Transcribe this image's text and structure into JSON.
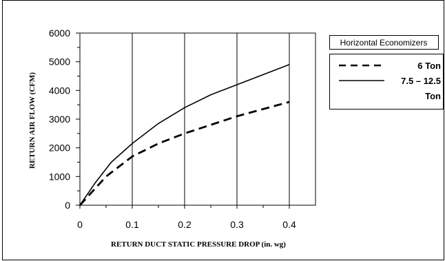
{
  "chart_data": {
    "type": "line",
    "xlabel": "RETURN DUCT STATIC PRESSURE DROP (in. wg)",
    "ylabel": "RETURN AIR FLOW (CFM)",
    "xlim": [
      0,
      0.45
    ],
    "ylim": [
      0,
      6000
    ],
    "x_ticks": [
      0,
      0.1,
      0.2,
      0.3,
      0.4
    ],
    "x_tick_labels": [
      "0",
      "0.1",
      "0.2",
      "0.3",
      "0.4"
    ],
    "y_ticks": [
      0,
      1000,
      2000,
      3000,
      4000,
      5000,
      6000
    ],
    "y_tick_labels": [
      "0",
      "1000",
      "2000",
      "3000",
      "4000",
      "5000",
      "6000"
    ],
    "grid": "vertical",
    "legend": {
      "title": "Horizontal Economizers",
      "position": "right",
      "entries": [
        {
          "line1": "6 Ton",
          "line2": ""
        },
        {
          "line1": "7.5 – 12.5",
          "line2": "Ton"
        }
      ]
    },
    "series": [
      {
        "name": "6 Ton",
        "style": "dashed",
        "points": [
          [
            0,
            0
          ],
          [
            0.05,
            1000
          ],
          [
            0.1,
            1700
          ],
          [
            0.15,
            2150
          ],
          [
            0.2,
            2500
          ],
          [
            0.25,
            2800
          ],
          [
            0.3,
            3100
          ],
          [
            0.35,
            3350
          ],
          [
            0.4,
            3600
          ]
        ]
      },
      {
        "name": "7.5 – 12.5 Ton",
        "style": "solid",
        "points": [
          [
            0,
            0
          ],
          [
            0.03,
            800
          ],
          [
            0.06,
            1500
          ],
          [
            0.1,
            2150
          ],
          [
            0.15,
            2850
          ],
          [
            0.2,
            3400
          ],
          [
            0.25,
            3850
          ],
          [
            0.3,
            4200
          ],
          [
            0.35,
            4550
          ],
          [
            0.4,
            4900
          ]
        ]
      }
    ]
  }
}
